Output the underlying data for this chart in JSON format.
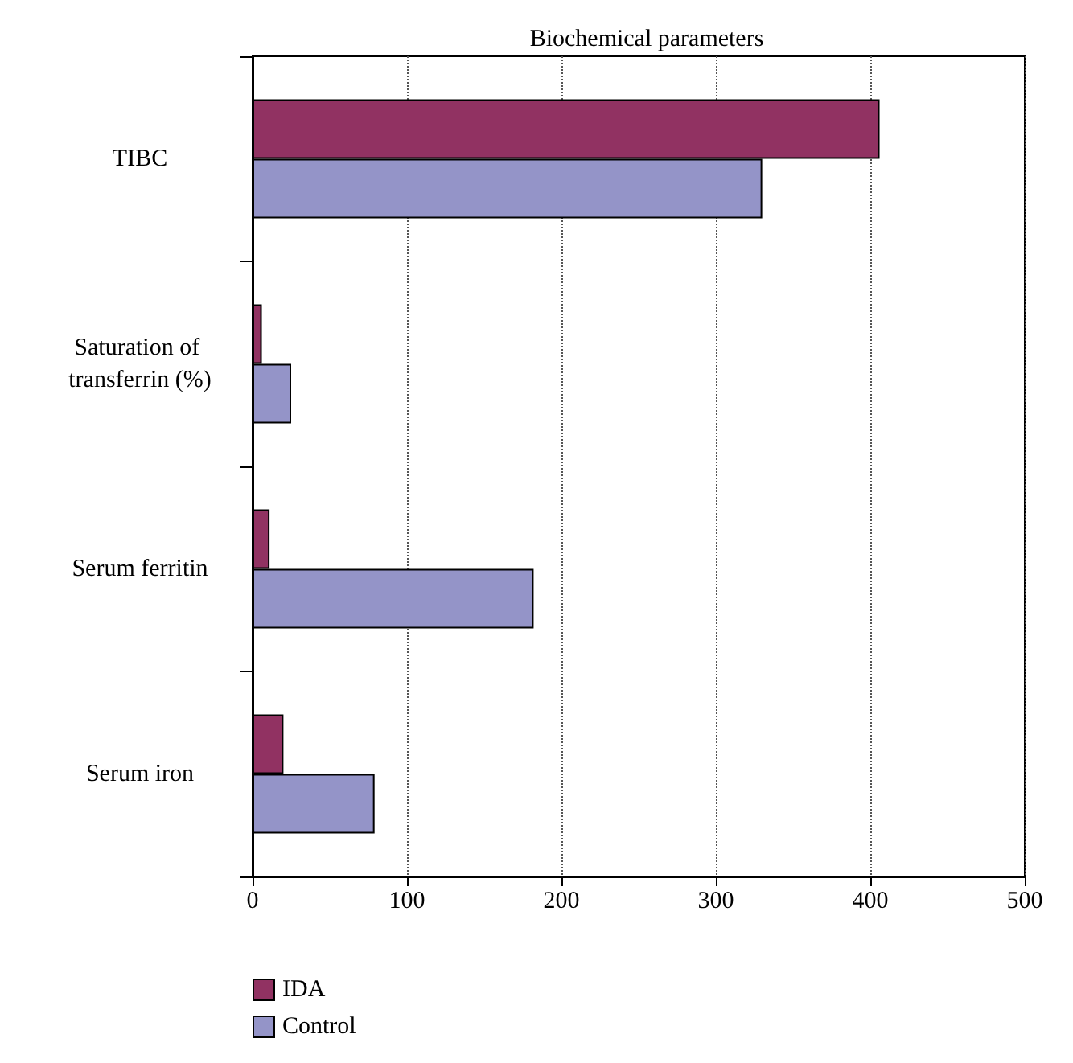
{
  "chart_data": {
    "type": "bar",
    "orientation": "horizontal",
    "title": "Biochemical parameters",
    "categories": [
      "TIBC",
      "Saturation of transferrin (%)",
      "Serum ferritin",
      "Serum iron"
    ],
    "series": [
      {
        "name": "IDA",
        "color": "#913262",
        "values": [
          406,
          6,
          11,
          20
        ]
      },
      {
        "name": "Control",
        "color": "#9494c8",
        "values": [
          330,
          25,
          182,
          79
        ]
      }
    ],
    "xlim": [
      0,
      500
    ],
    "xticks": [
      0,
      100,
      200,
      300,
      400,
      500
    ],
    "grid": "x",
    "legend": "bottom left"
  }
}
